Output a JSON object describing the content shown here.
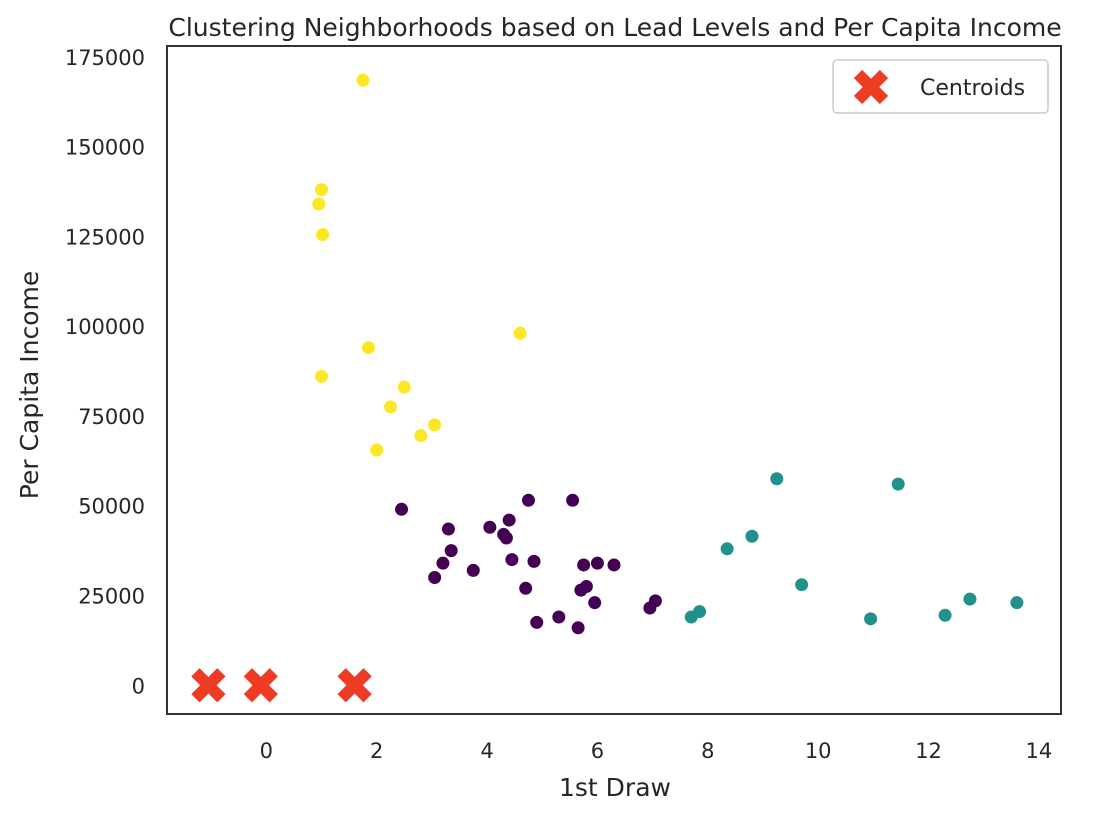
{
  "chart_data": {
    "type": "scatter",
    "title": "Clustering Neighborhoods based on Lead Levels and Per Capita Income",
    "xlabel": "1st Draw",
    "ylabel": "Per Capita Income",
    "xlim": [
      -1.8,
      14.4
    ],
    "ylim": [
      -8000,
      178000
    ],
    "xticks": [
      "0",
      "2",
      "4",
      "6",
      "8",
      "10",
      "12",
      "14"
    ],
    "xtick_values": [
      0,
      2,
      4,
      6,
      8,
      10,
      12,
      14
    ],
    "yticks": [
      "0",
      "25000",
      "50000",
      "75000",
      "100000",
      "125000",
      "150000",
      "175000"
    ],
    "ytick_values": [
      0,
      25000,
      50000,
      75000,
      100000,
      125000,
      150000,
      175000
    ],
    "grid": false,
    "legend": {
      "position": "top-right",
      "entries": [
        "Centroids"
      ]
    },
    "colors": {
      "cluster_0": "#440154",
      "cluster_1": "#21918c",
      "cluster_2": "#fde725",
      "centroid": "#ee3b24"
    },
    "series": [
      {
        "name": "cluster_0",
        "points": [
          [
            2.45,
            49000
          ],
          [
            3.05,
            30000
          ],
          [
            3.2,
            34000
          ],
          [
            3.3,
            43500
          ],
          [
            3.35,
            37500
          ],
          [
            3.75,
            32000
          ],
          [
            4.05,
            44000
          ],
          [
            4.3,
            42000
          ],
          [
            4.35,
            41000
          ],
          [
            4.4,
            46000
          ],
          [
            4.45,
            35000
          ],
          [
            4.7,
            27000
          ],
          [
            4.75,
            51500
          ],
          [
            4.85,
            34500
          ],
          [
            4.9,
            17500
          ],
          [
            5.3,
            19000
          ],
          [
            5.55,
            51500
          ],
          [
            5.65,
            16000
          ],
          [
            5.7,
            26500
          ],
          [
            5.75,
            33500
          ],
          [
            5.8,
            27500
          ],
          [
            5.95,
            23000
          ],
          [
            6.0,
            34000
          ],
          [
            6.3,
            33500
          ],
          [
            6.95,
            21500
          ],
          [
            7.05,
            23500
          ]
        ]
      },
      {
        "name": "cluster_1",
        "points": [
          [
            7.7,
            19000
          ],
          [
            7.85,
            20500
          ],
          [
            8.35,
            38000
          ],
          [
            8.8,
            41500
          ],
          [
            9.25,
            57500
          ],
          [
            9.7,
            28000
          ],
          [
            10.95,
            18500
          ],
          [
            11.45,
            56000
          ],
          [
            12.3,
            19500
          ],
          [
            12.75,
            24000
          ],
          [
            13.6,
            23000
          ]
        ]
      },
      {
        "name": "cluster_2",
        "points": [
          [
            0.95,
            134000
          ],
          [
            1.0,
            138000
          ],
          [
            1.02,
            125500
          ],
          [
            1.0,
            86000
          ],
          [
            1.75,
            168500
          ],
          [
            1.85,
            94000
          ],
          [
            2.0,
            65500
          ],
          [
            2.25,
            77500
          ],
          [
            2.5,
            83000
          ],
          [
            2.8,
            69500
          ],
          [
            3.05,
            72500
          ],
          [
            4.6,
            98000
          ]
        ]
      },
      {
        "name": "Centroids",
        "points": [
          [
            -1.05,
            0
          ],
          [
            -0.1,
            0
          ],
          [
            1.6,
            0
          ]
        ]
      }
    ]
  }
}
